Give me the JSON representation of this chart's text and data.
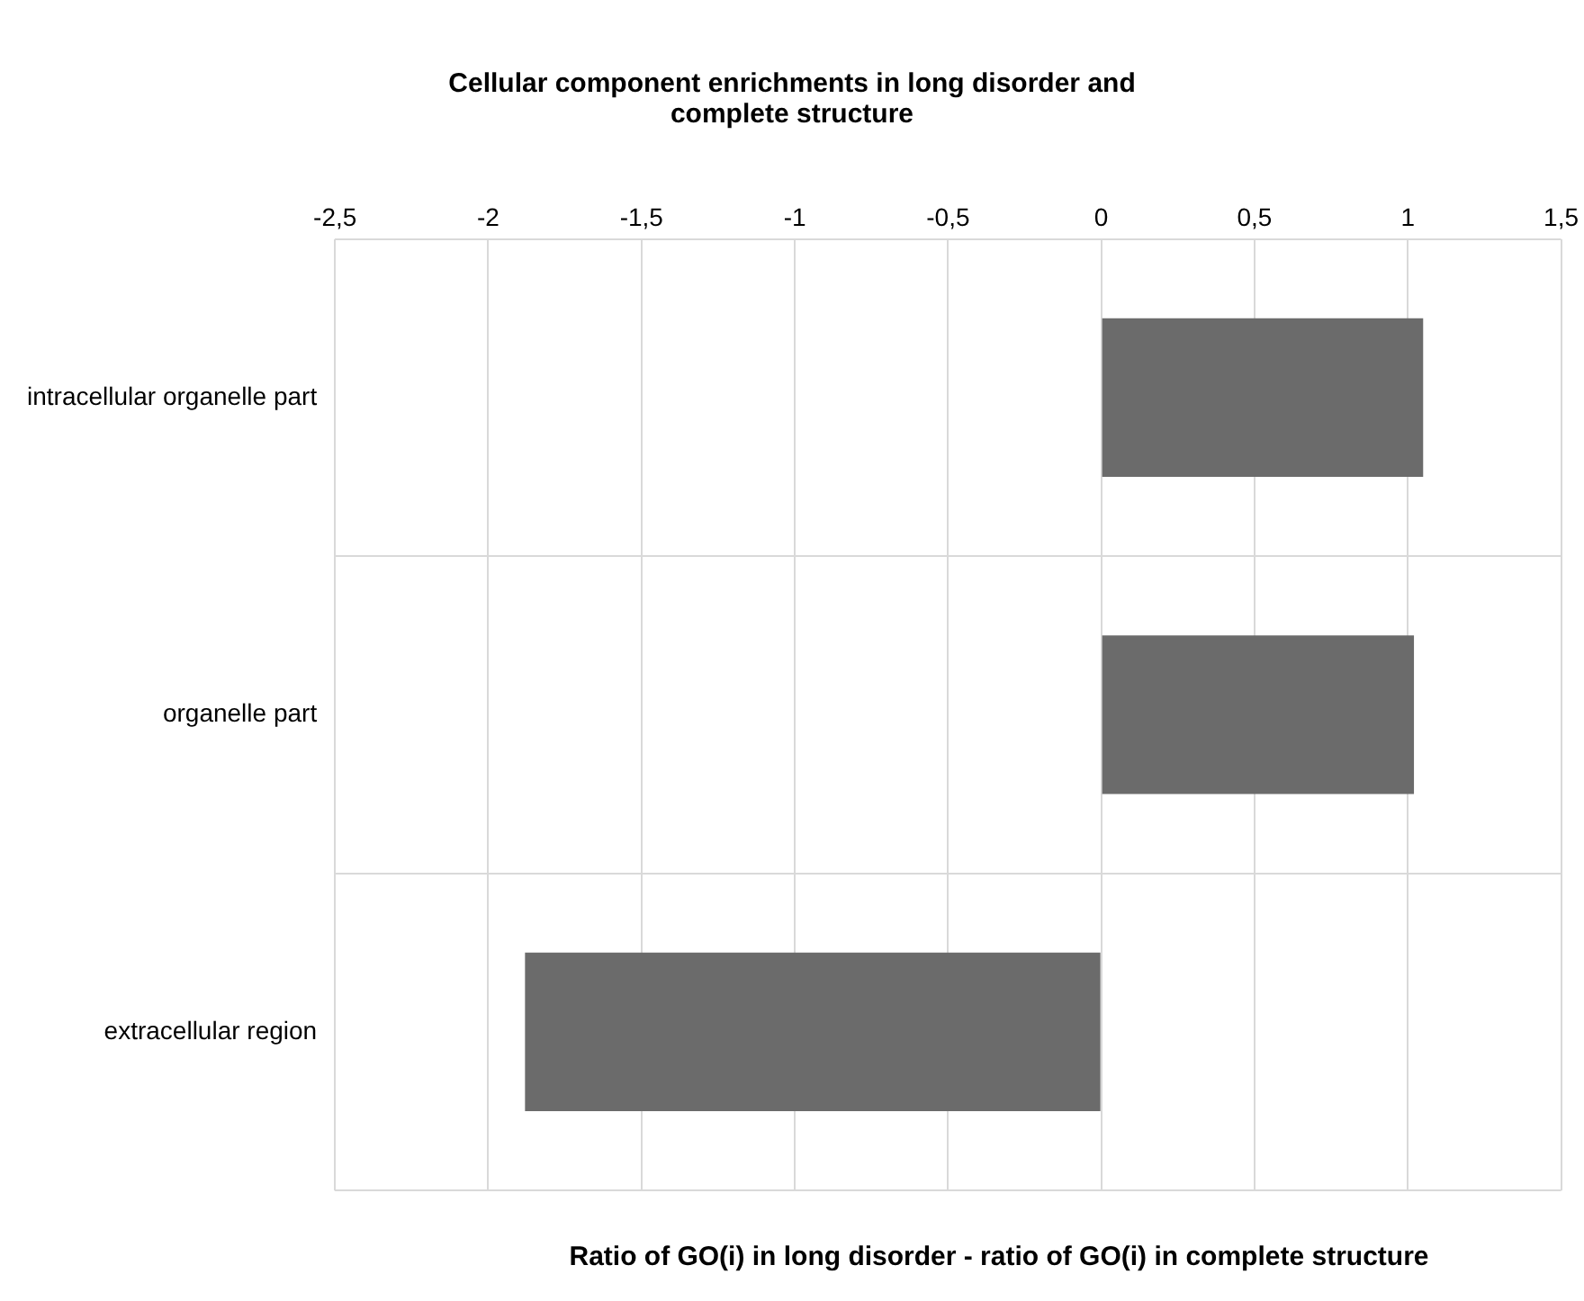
{
  "chart_data": {
    "type": "bar",
    "orientation": "horizontal",
    "title": "Cellular component enrichments in long disorder and complete structure",
    "xlabel": "Ratio of GO(i) in long disorder - ratio of GO(i) in complete structure",
    "categories": [
      "intracellular organelle part",
      "organelle part",
      "extracellular region"
    ],
    "values": [
      1.05,
      1.02,
      -1.88
    ],
    "color": "#6b6b6b",
    "xlim": [
      -2.5,
      1.5
    ],
    "xticks": [
      {
        "value": -2.5,
        "label": "-2,5"
      },
      -2,
      {
        "value": -1.5,
        "label": "-1,5"
      },
      -1,
      {
        "value": -0.5,
        "label": "-0,5"
      },
      0,
      {
        "value": 0.5,
        "label": "0,5"
      },
      1,
      {
        "value": 1.5,
        "label": "1,5"
      }
    ],
    "grid": true,
    "legend": false
  }
}
